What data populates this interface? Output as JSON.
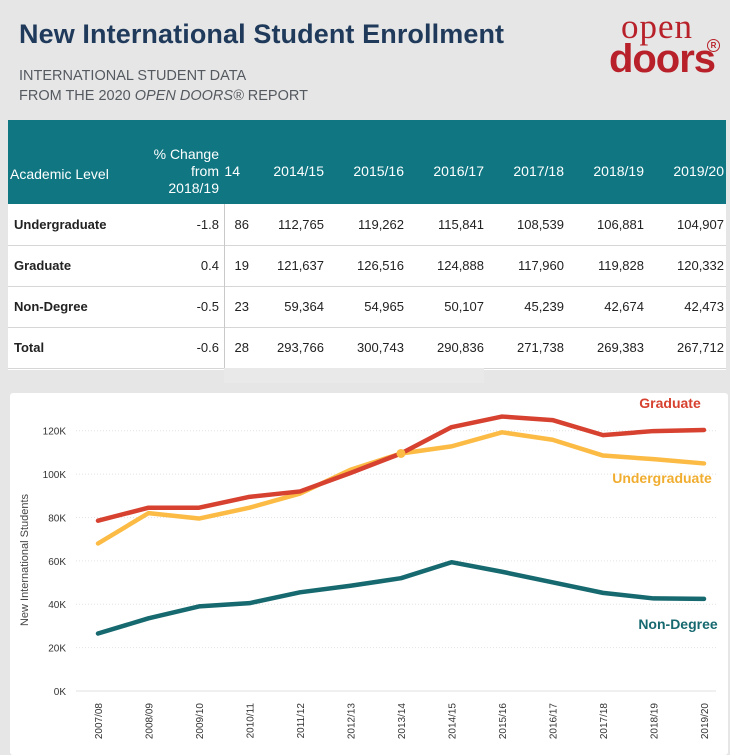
{
  "header": {
    "title": "New International Student Enrollment",
    "subtitle_line1": "INTERNATIONAL STUDENT DATA",
    "subtitle_line2_pre": "FROM THE 2020 ",
    "subtitle_line2_em": "OPEN DOORS®",
    "subtitle_line2_post": " REPORT"
  },
  "logo": {
    "line1": "open",
    "line2": "doors",
    "reg": "R"
  },
  "table": {
    "col_level": "Academic Level",
    "col_change_1": "% Change",
    "col_change_2": "from",
    "col_change_3": "2018/19",
    "clipped_year_header": "'14",
    "years": [
      "2014/15",
      "2015/16",
      "2016/17",
      "2017/18",
      "2018/19",
      "2019/20"
    ],
    "rows": [
      {
        "label": "Undergraduate",
        "change": "-1.8",
        "clipped": "86",
        "values": [
          "112,765",
          "119,262",
          "115,841",
          "108,539",
          "106,881",
          "104,907"
        ]
      },
      {
        "label": "Graduate",
        "change": "0.4",
        "clipped": "19",
        "values": [
          "121,637",
          "126,516",
          "124,888",
          "117,960",
          "119,828",
          "120,332"
        ]
      },
      {
        "label": "Non-Degree",
        "change": "-0.5",
        "clipped": "23",
        "values": [
          "59,364",
          "54,965",
          "50,107",
          "45,239",
          "42,674",
          "42,473"
        ]
      },
      {
        "label": "Total",
        "change": "-0.6",
        "clipped": "28",
        "values": [
          "293,766",
          "300,743",
          "290,836",
          "271,738",
          "269,383",
          "267,712"
        ]
      }
    ]
  },
  "chart_data": {
    "type": "line",
    "title": "",
    "xlabel": "",
    "ylabel": "New International Students",
    "ylim": [
      0,
      130000
    ],
    "yticks": [
      0,
      20000,
      40000,
      60000,
      80000,
      100000,
      120000
    ],
    "ytick_labels": [
      "0K",
      "20K",
      "40K",
      "60K",
      "80K",
      "100K",
      "120K"
    ],
    "categories": [
      "2007/08",
      "2008/09",
      "2009/10",
      "2010/11",
      "2011/12",
      "2012/13",
      "2013/14",
      "2014/15",
      "2015/16",
      "2016/17",
      "2017/18",
      "2018/19",
      "2019/20"
    ],
    "series": [
      {
        "name": "Graduate",
        "color": "#d7412f",
        "values": [
          78500,
          84500,
          84500,
          89500,
          92000,
          100500,
          109500,
          121637,
          126516,
          124888,
          117960,
          119828,
          120332
        ]
      },
      {
        "name": "Undergraduate",
        "color": "#fbbb44",
        "values": [
          68000,
          82000,
          79500,
          84500,
          91000,
          102000,
          109500,
          112765,
          119262,
          115841,
          108539,
          106881,
          104907
        ]
      },
      {
        "name": "Non-Degree",
        "color": "#16696f",
        "values": [
          26500,
          33500,
          39000,
          40500,
          45500,
          48500,
          52000,
          59364,
          54965,
          50107,
          45239,
          42674,
          42473
        ]
      }
    ],
    "intersection_marker": {
      "category": "2013/14",
      "value": 109500,
      "color": "#fbbb44"
    }
  }
}
